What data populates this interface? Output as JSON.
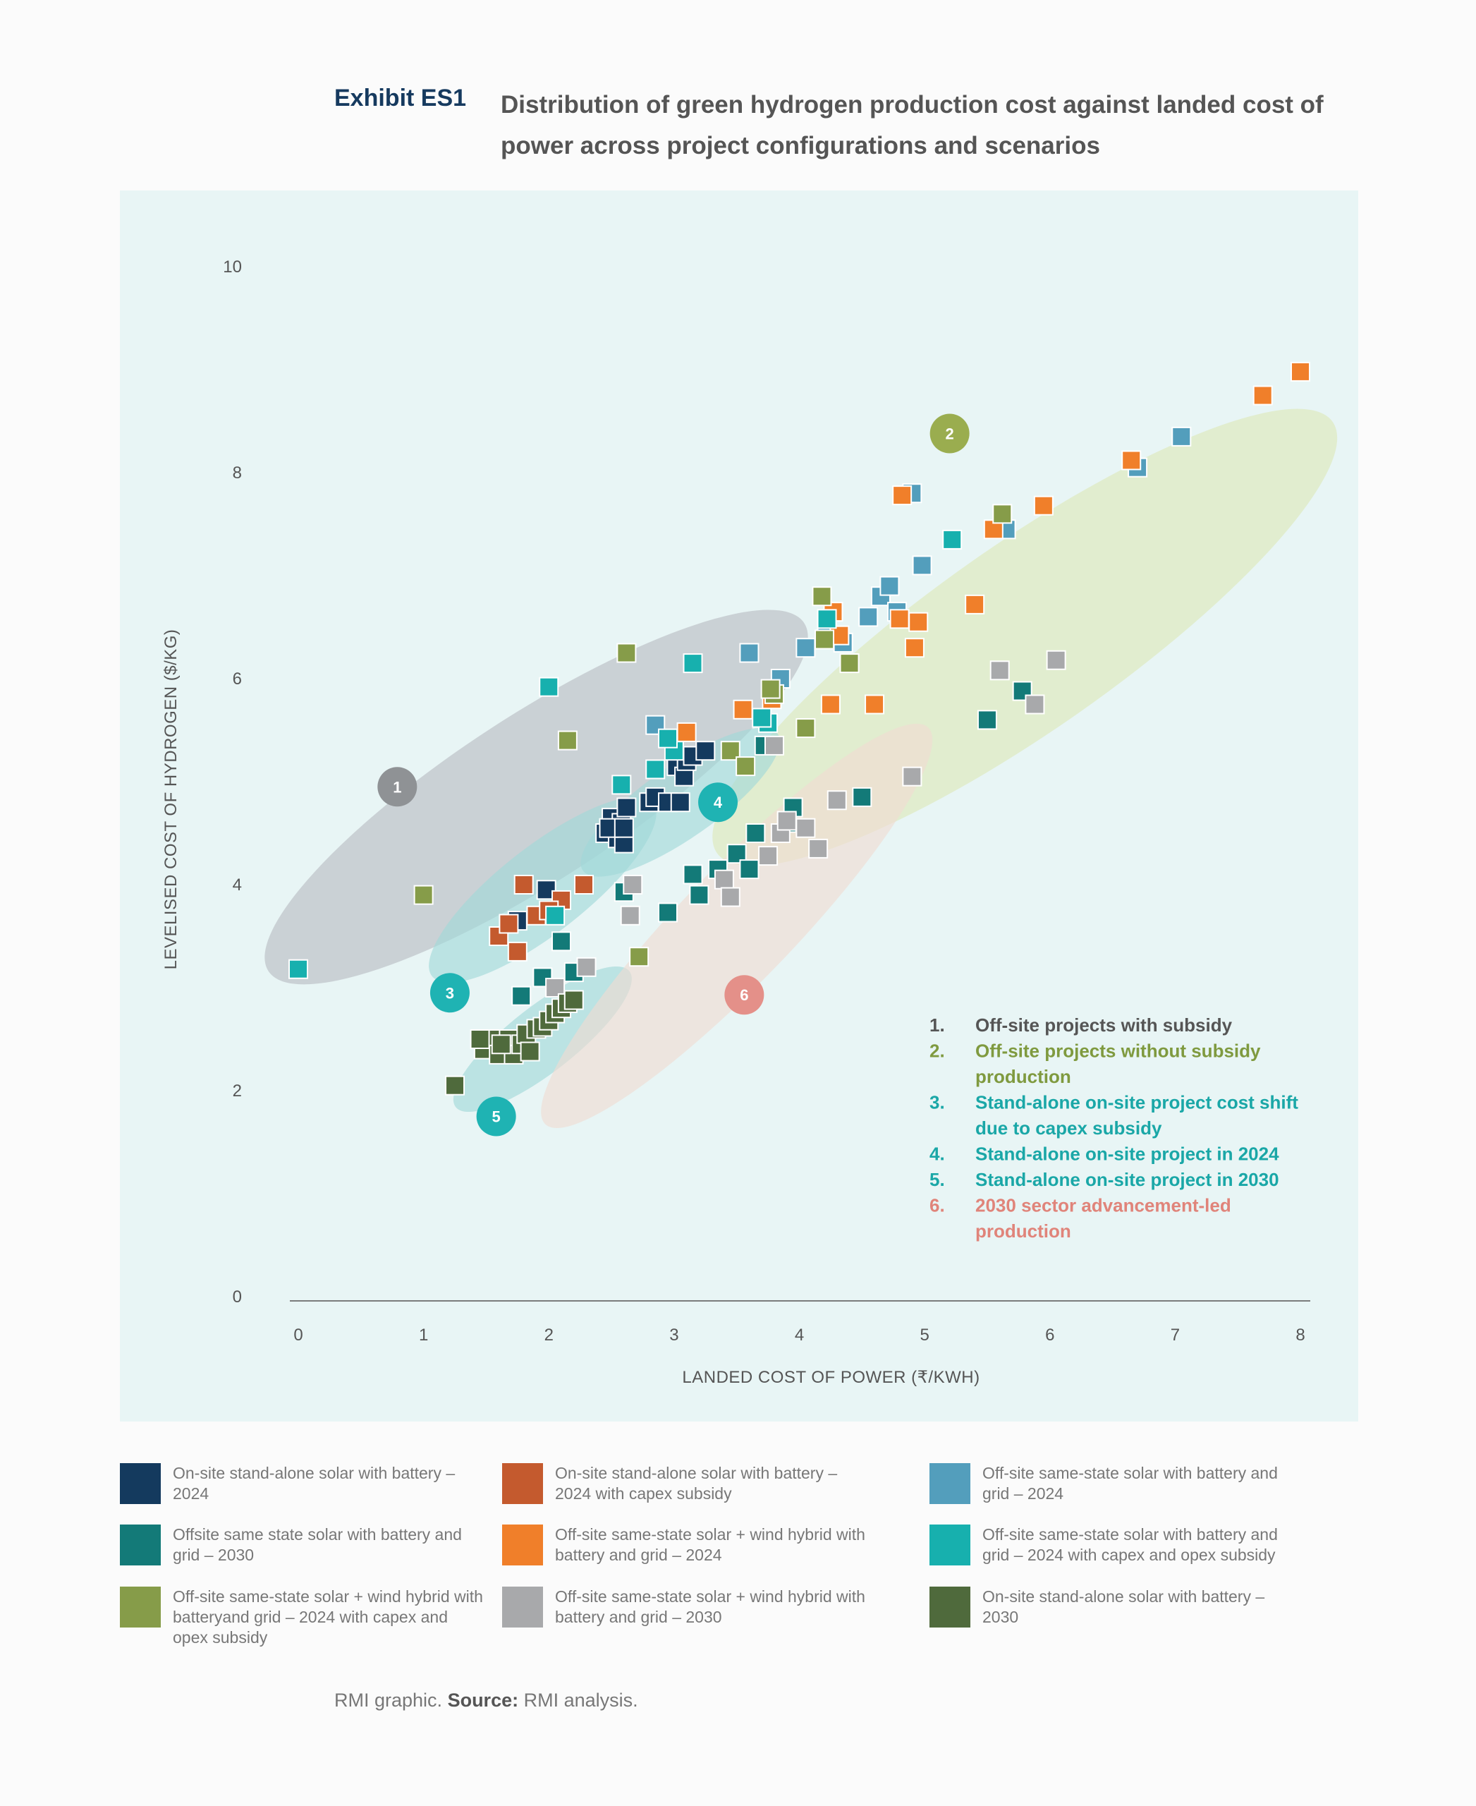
{
  "header": {
    "exhibit": "Exhibit ES1",
    "title": "Distribution of green hydrogen production cost  against landed cost of power across project configurations and scenarios"
  },
  "source": {
    "prefix": "RMI graphic. ",
    "label": "Source:",
    "text": " RMI analysis."
  },
  "colors": {
    "panel_bg": "#e8f5f5",
    "ellipse_1": "#b8bcc2",
    "ellipse_2": "#dde8b8",
    "ellipse_3": "#9fd8d8",
    "ellipse_4": "#9fd8d8",
    "ellipse_5": "#9fd8d8",
    "ellipse_6": "#f0dcd2"
  },
  "annotations": [
    {
      "num": "1.",
      "text_lines": [
        "Off-site projects with subsidy"
      ],
      "color": "#555555"
    },
    {
      "num": "2.",
      "text_lines": [
        "Off-site projects without subsidy",
        "production"
      ],
      "color": "#7f9a3f"
    },
    {
      "num": "3.",
      "text_lines": [
        "Stand-alone on-site project cost shift",
        "due to capex subsidy"
      ],
      "color": "#1aa7a7"
    },
    {
      "num": "4.",
      "text_lines": [
        "Stand-alone on-site project in 2024"
      ],
      "color": "#1aa7a7"
    },
    {
      "num": "5.",
      "text_lines": [
        "Stand-alone on-site project in 2030"
      ],
      "color": "#1aa7a7"
    },
    {
      "num": "6.",
      "text_lines": [
        "2030 sector advancement-led",
        "production"
      ],
      "color": "#e0847a"
    }
  ],
  "region_markers": [
    {
      "label": "1",
      "x": 0.79,
      "y": 4.95,
      "color": "#8f9295"
    },
    {
      "label": "2",
      "x": 5.2,
      "y": 8.38,
      "color": "#9aad4f"
    },
    {
      "label": "3",
      "x": 1.21,
      "y": 2.95,
      "color": "#1fb3b3"
    },
    {
      "label": "4",
      "x": 3.35,
      "y": 4.8,
      "color": "#1fb3b3"
    },
    {
      "label": "5",
      "x": 1.58,
      "y": 1.75,
      "color": "#1fb3b3"
    },
    {
      "label": "6",
      "x": 3.56,
      "y": 2.93,
      "color": "#e49089"
    }
  ],
  "chart_data": {
    "type": "scatter",
    "title": "",
    "xlabel": "LANDED COST OF POWER (₹/KWH)",
    "ylabel": "LEVELISED COST OF HYDROGEN ($/KG)",
    "xlim": [
      0,
      8
    ],
    "ylim": [
      0,
      10
    ],
    "x_ticks": [
      "0",
      "1",
      "2",
      "3",
      "4",
      "5",
      "6",
      "7",
      "8"
    ],
    "y_ticks": [
      "0",
      "2",
      "4",
      "6",
      "8",
      "10"
    ],
    "grid": false,
    "legend_position": "bottom",
    "regions": [
      {
        "id": "1",
        "cx": 1.9,
        "cy": 4.85,
        "rx": 2.55,
        "ry": 0.8,
        "angle_deg": -33
      },
      {
        "id": "2",
        "cx": 5.8,
        "cy": 6.4,
        "rx": 3.0,
        "ry": 0.9,
        "angle_deg": -35
      },
      {
        "id": "3",
        "cx": 1.95,
        "cy": 3.95,
        "rx": 1.12,
        "ry": 0.42,
        "angle_deg": -38
      },
      {
        "id": "4",
        "cx": 3.05,
        "cy": 4.8,
        "rx": 0.95,
        "ry": 0.35,
        "angle_deg": -35
      },
      {
        "id": "5",
        "cx": 1.95,
        "cy": 2.5,
        "rx": 0.88,
        "ry": 0.32,
        "angle_deg": -38
      },
      {
        "id": "6",
        "cx": 3.5,
        "cy": 3.6,
        "rx": 2.2,
        "ry": 0.55,
        "angle_deg": -46
      }
    ],
    "series": [
      {
        "name": "On-site stand-alone solar with battery – 2024",
        "color": "#143a5e",
        "points": [
          [
            1.75,
            3.65
          ],
          [
            1.98,
            3.95
          ],
          [
            2.45,
            4.5
          ],
          [
            2.5,
            4.65
          ],
          [
            2.55,
            4.45
          ],
          [
            2.6,
            4.4
          ],
          [
            2.58,
            4.6
          ],
          [
            2.62,
            4.75
          ],
          [
            2.8,
            4.8
          ],
          [
            2.85,
            4.85
          ],
          [
            2.95,
            4.8
          ],
          [
            3.05,
            4.8
          ],
          [
            3.02,
            5.15
          ],
          [
            3.08,
            5.05
          ],
          [
            3.1,
            5.2
          ],
          [
            3.15,
            5.25
          ],
          [
            3.25,
            5.3
          ],
          [
            2.48,
            4.55
          ],
          [
            2.6,
            4.55
          ]
        ]
      },
      {
        "name": "On-site stand-alone solar with battery – 2024 with capex subsidy",
        "color": "#c45a2e",
        "points": [
          [
            1.6,
            3.5
          ],
          [
            1.68,
            3.62
          ],
          [
            1.75,
            3.35
          ],
          [
            1.8,
            4.0
          ],
          [
            1.9,
            3.7
          ],
          [
            2.1,
            3.85
          ],
          [
            2.0,
            3.75
          ],
          [
            2.28,
            4.0
          ]
        ]
      },
      {
        "name": "Off-site same-state solar with battery and grid – 2024",
        "color": "#539ebc",
        "points": [
          [
            2.85,
            5.55
          ],
          [
            3.6,
            6.25
          ],
          [
            3.85,
            6.0
          ],
          [
            4.05,
            6.3
          ],
          [
            4.22,
            6.55
          ],
          [
            4.35,
            6.35
          ],
          [
            4.55,
            6.6
          ],
          [
            4.65,
            6.8
          ],
          [
            4.72,
            6.9
          ],
          [
            4.78,
            6.65
          ],
          [
            4.9,
            7.8
          ],
          [
            4.98,
            7.1
          ],
          [
            5.65,
            7.45
          ],
          [
            6.7,
            8.05
          ],
          [
            7.05,
            8.35
          ]
        ]
      },
      {
        "name": "Offsite same state solar with battery and grid – 2030",
        "color": "#137a78",
        "points": [
          [
            1.78,
            2.92
          ],
          [
            1.95,
            3.1
          ],
          [
            2.1,
            3.45
          ],
          [
            2.2,
            3.15
          ],
          [
            2.6,
            3.93
          ],
          [
            2.95,
            3.73
          ],
          [
            3.15,
            4.1
          ],
          [
            3.2,
            3.9
          ],
          [
            3.35,
            4.15
          ],
          [
            3.5,
            4.3
          ],
          [
            3.6,
            4.15
          ],
          [
            3.65,
            4.5
          ],
          [
            3.95,
            4.75
          ],
          [
            4.5,
            4.85
          ],
          [
            5.5,
            5.6
          ],
          [
            5.78,
            5.88
          ],
          [
            3.72,
            5.35
          ],
          [
            3.9,
            4.6
          ]
        ]
      },
      {
        "name": "Off-site same-state solar + wind hybrid with battery and grid – 2024",
        "color": "#f07f2a",
        "points": [
          [
            3.1,
            5.48
          ],
          [
            3.55,
            5.7
          ],
          [
            3.78,
            5.8
          ],
          [
            4.25,
            5.75
          ],
          [
            4.27,
            6.65
          ],
          [
            4.32,
            6.42
          ],
          [
            4.6,
            5.75
          ],
          [
            4.8,
            6.58
          ],
          [
            4.82,
            7.78
          ],
          [
            4.92,
            6.3
          ],
          [
            4.95,
            6.55
          ],
          [
            5.4,
            6.72
          ],
          [
            5.55,
            7.45
          ],
          [
            5.95,
            7.68
          ],
          [
            6.65,
            8.12
          ],
          [
            7.7,
            8.75
          ],
          [
            8.0,
            8.98
          ]
        ]
      },
      {
        "name": "Off-site same-state solar with battery and grid – 2024 with capex and opex subsidy",
        "color": "#17b0ae",
        "points": [
          [
            0.0,
            3.18
          ],
          [
            2.0,
            5.92
          ],
          [
            2.05,
            3.7
          ],
          [
            2.58,
            4.97
          ],
          [
            2.85,
            5.12
          ],
          [
            3.0,
            5.3
          ],
          [
            3.15,
            6.15
          ],
          [
            3.75,
            5.57
          ],
          [
            4.22,
            6.58
          ],
          [
            5.22,
            7.35
          ],
          [
            3.7,
            5.62
          ],
          [
            2.95,
            5.42
          ]
        ]
      },
      {
        "name": "Off-site same-state solar + wind hybrid with batteryand grid – 2024 with capex and opex subsidy",
        "color": "#869c49",
        "points": [
          [
            1.0,
            3.9
          ],
          [
            2.15,
            5.4
          ],
          [
            2.62,
            6.25
          ],
          [
            2.72,
            3.3
          ],
          [
            3.45,
            5.3
          ],
          [
            3.57,
            5.15
          ],
          [
            3.8,
            5.85
          ],
          [
            4.05,
            5.52
          ],
          [
            4.2,
            6.38
          ],
          [
            4.4,
            6.15
          ],
          [
            4.18,
            6.8
          ],
          [
            5.62,
            7.6
          ],
          [
            3.77,
            5.9
          ]
        ]
      },
      {
        "name": "Off-site same-state solar + wind hybrid with battery and grid – 2030",
        "color": "#a8a9ab",
        "points": [
          [
            2.3,
            3.2
          ],
          [
            2.05,
            3.0
          ],
          [
            2.65,
            3.7
          ],
          [
            2.67,
            4.0
          ],
          [
            3.4,
            4.05
          ],
          [
            3.45,
            3.88
          ],
          [
            3.75,
            4.28
          ],
          [
            3.85,
            4.5
          ],
          [
            3.9,
            4.62
          ],
          [
            4.05,
            4.55
          ],
          [
            4.15,
            4.35
          ],
          [
            4.3,
            4.82
          ],
          [
            4.9,
            5.05
          ],
          [
            5.6,
            6.08
          ],
          [
            6.05,
            6.18
          ],
          [
            5.88,
            5.75
          ],
          [
            3.8,
            5.35
          ]
        ]
      },
      {
        "name": "On-site stand-alone solar with battery – 2030",
        "color": "#4f6a3c",
        "points": [
          [
            1.25,
            2.05
          ],
          [
            1.48,
            2.4
          ],
          [
            1.55,
            2.5
          ],
          [
            1.6,
            2.35
          ],
          [
            1.68,
            2.5
          ],
          [
            1.72,
            2.35
          ],
          [
            1.78,
            2.45
          ],
          [
            1.82,
            2.55
          ],
          [
            1.85,
            2.38
          ],
          [
            1.9,
            2.6
          ],
          [
            1.95,
            2.62
          ],
          [
            2.0,
            2.68
          ],
          [
            2.05,
            2.75
          ],
          [
            2.1,
            2.8
          ],
          [
            2.15,
            2.85
          ],
          [
            2.2,
            2.88
          ],
          [
            1.45,
            2.5
          ],
          [
            1.62,
            2.45
          ]
        ]
      }
    ]
  }
}
